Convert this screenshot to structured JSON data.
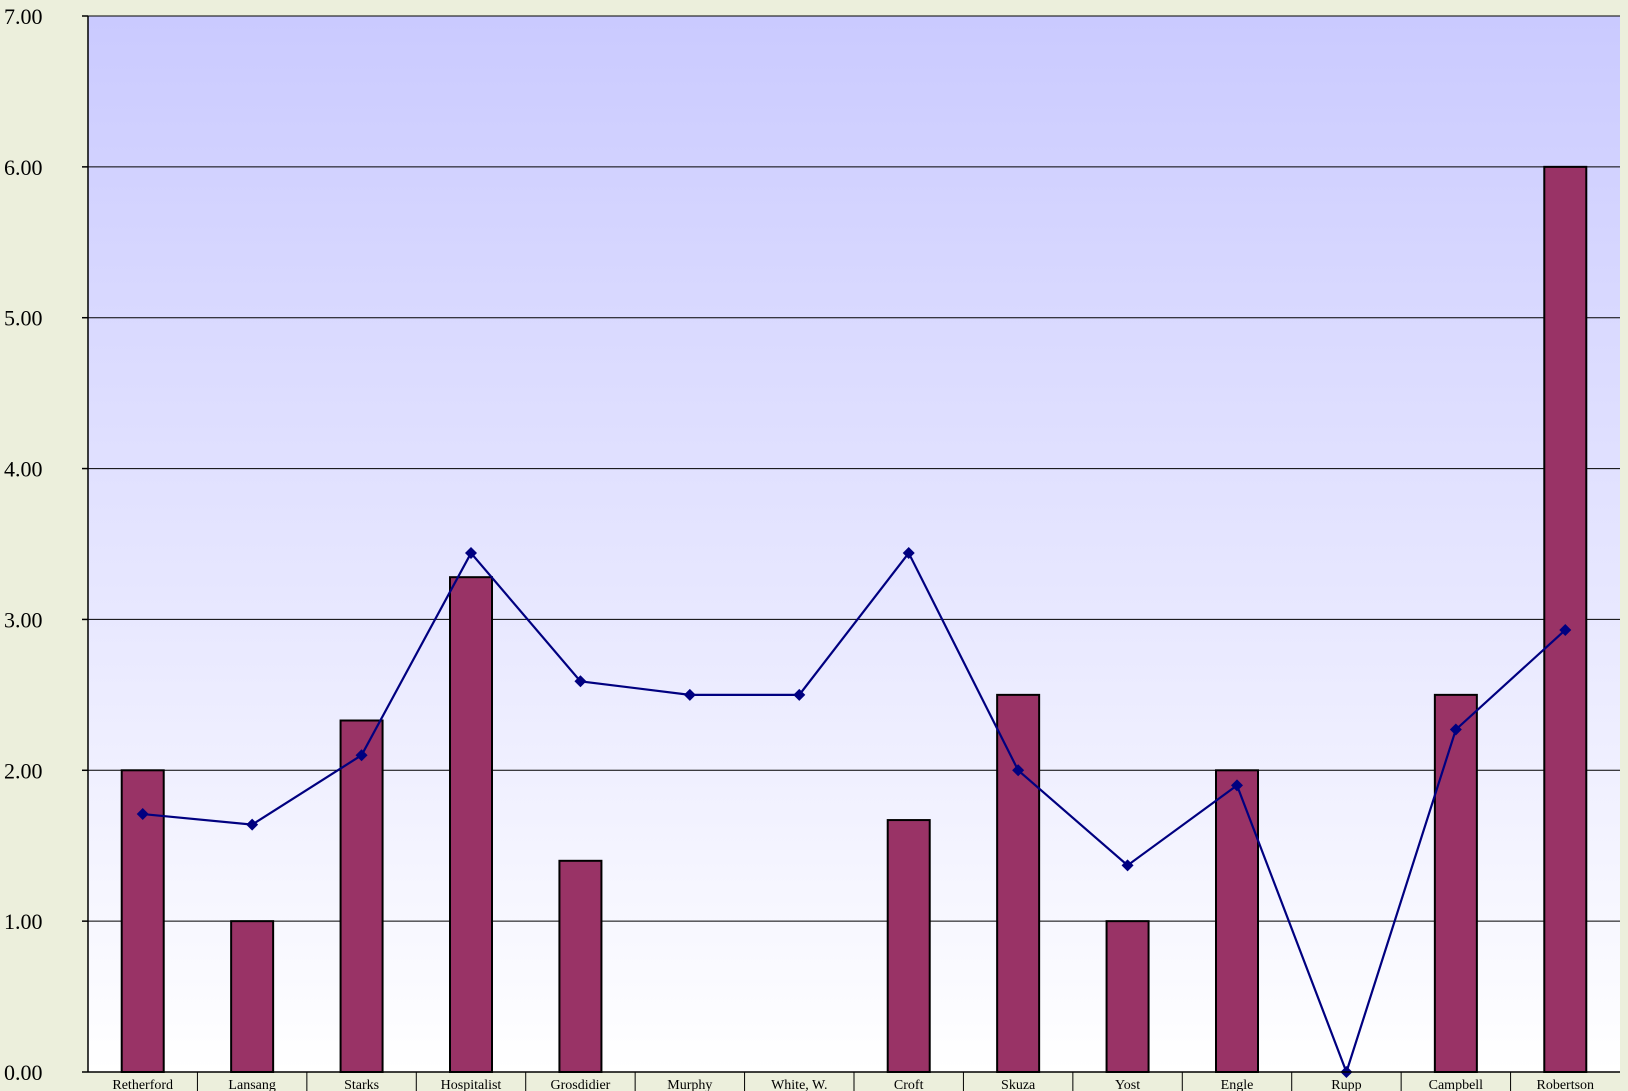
{
  "colors": {
    "page_background": "#ecefdc",
    "plot_top": "#cacaff",
    "plot_bottom": "#ffffff",
    "bar_fill": "#993366",
    "bar_stroke": "#000000",
    "line": "#000080",
    "marker": "#000080",
    "grid": "#000000"
  },
  "chart_data": {
    "type": "bar",
    "categories": [
      "Retherford",
      "Lansang",
      "Starks",
      "Hospitalist",
      "Grosdidier",
      "Murphy",
      "White, W.",
      "Croft",
      "Skuza",
      "Yost",
      "Engle",
      "Rupp",
      "Campbell",
      "Robertson"
    ],
    "series": [
      {
        "type": "bar",
        "values": [
          2.0,
          1.0,
          2.33,
          3.28,
          1.4,
          null,
          null,
          1.67,
          2.5,
          1.0,
          2.0,
          null,
          2.5,
          6.0
        ]
      },
      {
        "type": "line",
        "marker": "diamond",
        "values": [
          1.71,
          1.64,
          2.1,
          3.44,
          2.59,
          2.5,
          2.5,
          3.44,
          2.0,
          1.37,
          1.9,
          0.0,
          2.27,
          2.93
        ]
      }
    ],
    "ylim": [
      0,
      7
    ],
    "yticks": [
      "0.00",
      "1.00",
      "2.00",
      "3.00",
      "4.00",
      "5.00",
      "6.00",
      "7.00"
    ],
    "grid": true,
    "title": "",
    "xlabel": "",
    "ylabel": ""
  }
}
